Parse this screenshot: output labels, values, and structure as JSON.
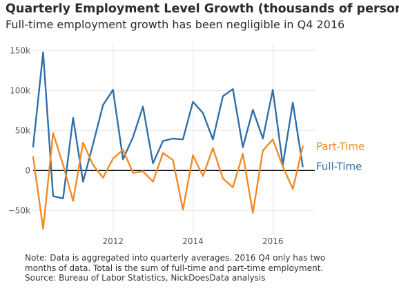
{
  "title": "Quarterly Employment Level Growth (thousands of persons)",
  "subtitle": "Full-time employment growth has been negligible in Q4 2016",
  "note_lines": [
    "Note: Data is aggregated into quarterly averages. 2016 Q4 only has two",
    "months of data. Total is the sum of full-time and part-time employment.",
    "Source: Bureau of Labor Statistics, NickDoesData analysis"
  ],
  "chart_data": {
    "type": "line",
    "title": "Quarterly Employment Level Growth (thousands of persons)",
    "xlim": [
      2010,
      2017.05
    ],
    "ylim": [
      -80000,
      160000
    ],
    "x_ticks": [
      2012,
      2014,
      2016
    ],
    "x_tick_labels": [
      "2012",
      "2014",
      "2016"
    ],
    "y_ticks": [
      -50000,
      0,
      50000,
      100000,
      150000
    ],
    "y_tick_labels": [
      "−50k",
      "0",
      "50k",
      "100k",
      "150k"
    ],
    "grid": true,
    "zero_line": true,
    "legend": "direct labels at line ends (right)",
    "x": [
      2010.0,
      2010.25,
      2010.5,
      2010.75,
      2011.0,
      2011.25,
      2011.5,
      2011.75,
      2012.0,
      2012.25,
      2012.5,
      2012.75,
      2013.0,
      2013.25,
      2013.5,
      2013.75,
      2014.0,
      2014.25,
      2014.5,
      2014.75,
      2015.0,
      2015.25,
      2015.5,
      2015.75,
      2016.0,
      2016.25,
      2016.5,
      2016.75,
      2017.0
    ],
    "series": [
      {
        "name": "Full-Time",
        "color": "#2f6fa8",
        "values": [
          30000,
          148000,
          -32000,
          -35000,
          66000,
          -14000,
          33000,
          82000,
          101000,
          14000,
          42000,
          80000,
          9000,
          37000,
          40000,
          39000,
          86000,
          72000,
          39000,
          93000,
          102000,
          29000,
          76000,
          40000,
          101000,
          7000,
          85000,
          5000,
          null
        ]
      },
      {
        "name": "Part-Time",
        "color": "#f28a25",
        "values": [
          17000,
          -73000,
          47000,
          7000,
          -38000,
          35000,
          7000,
          -9000,
          15000,
          26000,
          -3000,
          -1000,
          -14000,
          22000,
          13000,
          -49000,
          19000,
          -7000,
          28000,
          -10000,
          -21000,
          21000,
          -53000,
          25000,
          39000,
          5000,
          -23000,
          30000,
          null
        ]
      }
    ]
  }
}
